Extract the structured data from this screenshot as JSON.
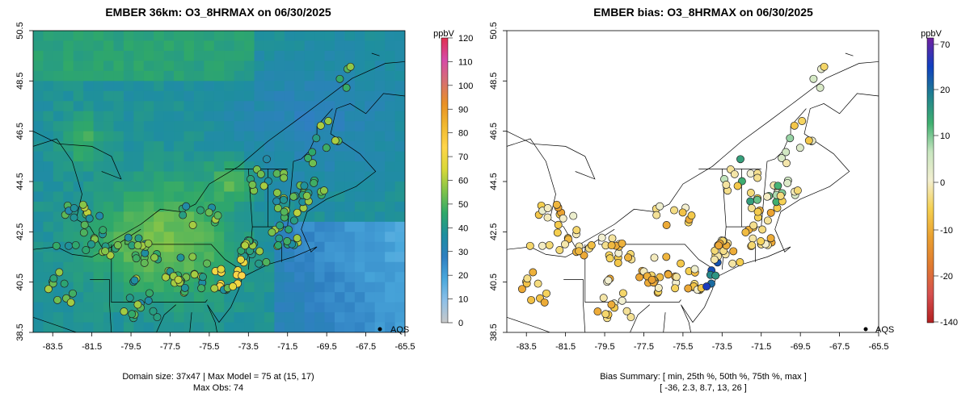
{
  "colors": {
    "land": "#000000",
    "site_outline": "#222222",
    "bg": "#ffffff"
  },
  "chart_data": [
    {
      "type": "heatmap",
      "title": "EMBER 36km: O3_8HRMAX on 06/30/2025",
      "units_label": "ppbV",
      "xlim": [
        -84.5,
        -65.5
      ],
      "ylim": [
        38.5,
        50.5
      ],
      "x_ticks": [
        "-83.5",
        "-81.5",
        "-79.5",
        "-77.5",
        "-75.5",
        "-73.5",
        "-71.5",
        "-69.5",
        "-67.5",
        "-65.5"
      ],
      "y_ticks": [
        "38.5",
        "40.5",
        "42.5",
        "44.5",
        "46.5",
        "48.5",
        "50.5"
      ],
      "colorbar": {
        "min": 0,
        "max": 120,
        "ticks": [
          "0",
          "10",
          "20",
          "30",
          "40",
          "50",
          "60",
          "70",
          "80",
          "90",
          "100",
          "110",
          "120"
        ],
        "stops": [
          "#c8c8c8",
          "#8ec0e8",
          "#4aa8dc",
          "#2f7fc1",
          "#1e8ea0",
          "#2fa86a",
          "#7fc34a",
          "#d8d838",
          "#ffd54a",
          "#f0b830",
          "#e89025",
          "#d67070",
          "#d64aa8",
          "#e03050"
        ]
      },
      "legend": "AQS",
      "footer_line1": "Domain size: 37x47 | Max Model = 75 at (15, 17)",
      "footer_line2": "Max Obs: 74"
    },
    {
      "type": "scatter",
      "title": "EMBER bias: O3_8HRMAX on 06/30/2025",
      "units_label": "ppbV",
      "xlim": [
        -84.5,
        -65.5
      ],
      "ylim": [
        38.5,
        50.5
      ],
      "x_ticks": [
        "-83.5",
        "-81.5",
        "-79.5",
        "-77.5",
        "-75.5",
        "-73.5",
        "-71.5",
        "-69.5",
        "-67.5",
        "-65.5"
      ],
      "y_ticks": [
        "38.5",
        "40.5",
        "42.5",
        "44.5",
        "46.5",
        "48.5",
        "50.5"
      ],
      "colorbar": {
        "ticks": [
          "70",
          "20",
          "10",
          "0",
          "-10",
          "-20",
          "-140"
        ],
        "stops": [
          "#b22020",
          "#d65050",
          "#e07a30",
          "#eaa030",
          "#f5d050",
          "#f3efd0",
          "#c8e6c0",
          "#40b070",
          "#208090",
          "#1040c0",
          "#7020a0"
        ]
      },
      "legend": "AQS",
      "bias_summary": {
        "label": "Bias Summary: [ min, 25th %, 50th %, 75th %, max ]",
        "values": "[ -36,   2.3,   8.7,   13,   26 ]",
        "min": -36,
        "p25": 2.3,
        "p50": 8.7,
        "p75": 13,
        "max": 26
      }
    }
  ]
}
